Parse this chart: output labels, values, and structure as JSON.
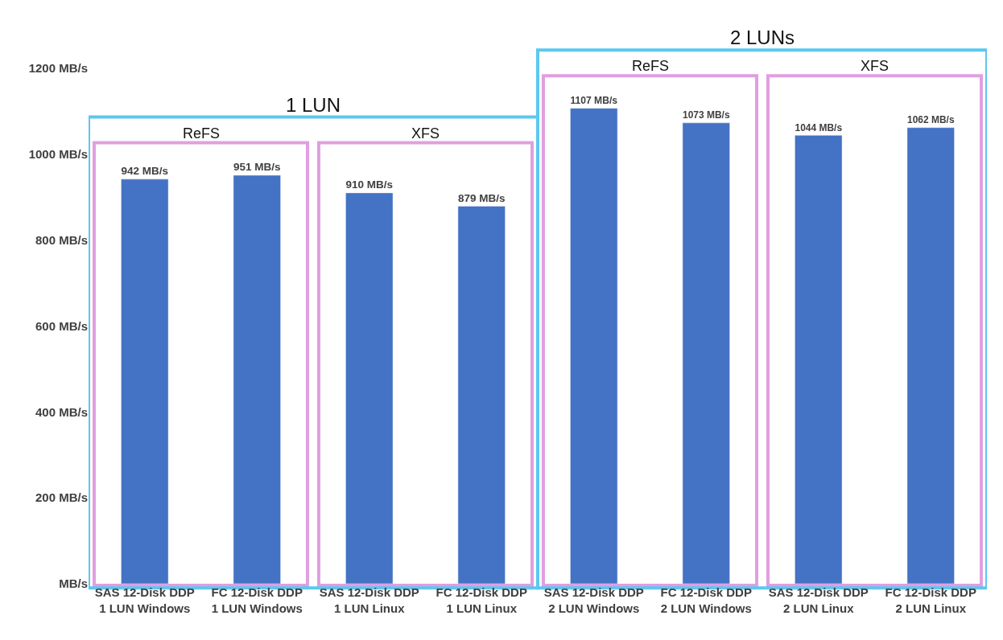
{
  "chart_data": {
    "type": "bar",
    "categories": [
      "SAS 12-Disk DDP 1 LUN Windows",
      "FC 12-Disk DDP 1 LUN Windows",
      "SAS 12-Disk DDP 1 LUN Linux",
      "FC 12-Disk DDP 1 LUN Linux",
      "SAS 12-Disk DDP 2 LUN Windows",
      "FC 12-Disk DDP 2 LUN Windows",
      "SAS 12-Disk DDP 2 LUN Linux",
      "FC 12-Disk DDP 2 LUN Linux"
    ],
    "values": [
      942,
      951,
      910,
      879,
      1107,
      1073,
      1044,
      1062
    ],
    "value_labels": [
      "942 MB/s",
      "951 MB/s",
      "910 MB/s",
      "879 MB/s",
      "1107 MB/s",
      "1073 MB/s",
      "1044 MB/s",
      "1062 MB/s"
    ],
    "color": "#4472c4",
    "ylim": [
      0,
      1200
    ],
    "yticks": [
      {
        "value": 0,
        "label": "MB/s"
      },
      {
        "value": 200,
        "label": "200 MB/s"
      },
      {
        "value": 400,
        "label": "400 MB/s"
      },
      {
        "value": 600,
        "label": "600 MB/s"
      },
      {
        "value": 800,
        "label": "800 MB/s"
      },
      {
        "value": 1000,
        "label": "1000 MB/s"
      },
      {
        "value": 1200,
        "label": "1200 MB/s"
      }
    ],
    "grid": false,
    "legend": false,
    "annotations": [
      "1 LUN",
      "ReFS",
      "XFS",
      "2 LUNs",
      "ReFS",
      "XFS"
    ]
  }
}
